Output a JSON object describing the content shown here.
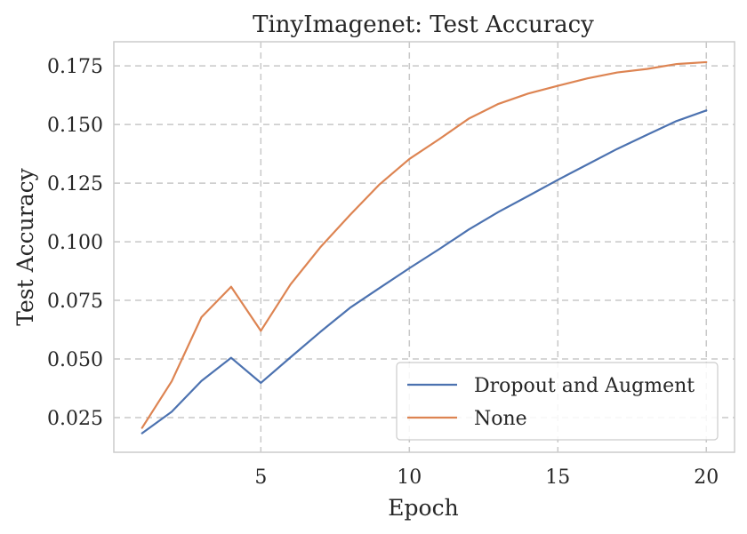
{
  "chart_data": {
    "type": "line",
    "title": "TinyImagenet: Test Accuracy",
    "xlabel": "Epoch",
    "ylabel": "Test Accuracy",
    "x": [
      1,
      2,
      3,
      4,
      5,
      6,
      7,
      8,
      9,
      10,
      11,
      12,
      13,
      14,
      15,
      16,
      17,
      18,
      19,
      20
    ],
    "xlim": [
      0.05,
      20.95
    ],
    "ylim": [
      0.0102,
      0.1853
    ],
    "xticks": [
      5,
      10,
      15,
      20
    ],
    "xtick_labels": [
      "5",
      "10",
      "15",
      "20"
    ],
    "yticks": [
      0.025,
      0.05,
      0.075,
      0.1,
      0.125,
      0.15,
      0.175
    ],
    "ytick_labels": [
      "0.025",
      "0.050",
      "0.075",
      "0.100",
      "0.125",
      "0.150",
      "0.175"
    ],
    "grid": true,
    "legend_position": "lower-right",
    "series": [
      {
        "name": "Dropout and Augment",
        "color": "#4c72b0",
        "values": [
          0.0183,
          0.0275,
          0.0406,
          0.0505,
          0.0398,
          0.0507,
          0.0615,
          0.0718,
          0.0803,
          0.0887,
          0.0968,
          0.1052,
          0.1127,
          0.1195,
          0.1264,
          0.133,
          0.1396,
          0.1456,
          0.1515,
          0.156
        ]
      },
      {
        "name": "None",
        "color": "#dd8452",
        "values": [
          0.0206,
          0.0405,
          0.0678,
          0.0808,
          0.062,
          0.0818,
          0.0976,
          0.1114,
          0.1245,
          0.1353,
          0.1437,
          0.1525,
          0.1588,
          0.1632,
          0.1665,
          0.1697,
          0.1722,
          0.1737,
          0.1758,
          0.1766
        ]
      }
    ]
  }
}
